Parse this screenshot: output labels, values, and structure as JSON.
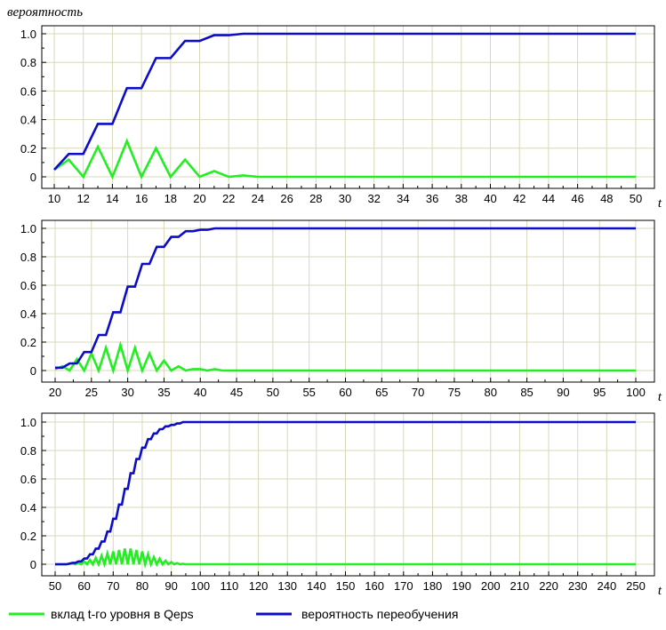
{
  "figure": {
    "ylabel": "вероятность",
    "time_label": "t"
  },
  "legend": [
    {
      "label": "вклад t-го уровня в Qeps",
      "color": "#22ee22"
    },
    {
      "label": "вероятность переобучения",
      "color": "#0d0dc8"
    }
  ],
  "colors": {
    "grid": "#d8d8b8",
    "axes": "#000000",
    "green": "#22ee22",
    "blue": "#0d0dc8"
  },
  "chart_data": [
    {
      "type": "line",
      "xlim": [
        10,
        50
      ],
      "ylim": [
        0,
        1.0
      ],
      "x_tick_step": 2,
      "y_ticks": [
        "0",
        "0.2",
        "0.4",
        "0.6",
        "0.8",
        "1.0"
      ],
      "y_values": [
        0,
        0.2,
        0.4,
        0.6,
        0.8,
        1.0
      ],
      "series": [
        {
          "name": "вклад t-го уровня в Qeps",
          "color": "#22ee22",
          "x": [
            10,
            11,
            12,
            13,
            14,
            15,
            16,
            17,
            18,
            19,
            20,
            21,
            22,
            23,
            24,
            25,
            26,
            27,
            28,
            29,
            30,
            31,
            32,
            33,
            34,
            35,
            36,
            37,
            38,
            39,
            40,
            41,
            42,
            43,
            44,
            45,
            46,
            47,
            48,
            49,
            50
          ],
          "y": [
            0.05,
            0.12,
            0,
            0.21,
            0,
            0.25,
            0,
            0.2,
            0,
            0.12,
            0,
            0.04,
            0,
            0.01,
            0,
            0,
            0,
            0,
            0,
            0,
            0,
            0,
            0,
            0,
            0,
            0,
            0,
            0,
            0,
            0,
            0,
            0,
            0,
            0,
            0,
            0,
            0,
            0,
            0,
            0,
            0
          ]
        },
        {
          "name": "вероятность переобучения",
          "color": "#0d0dc8",
          "x": [
            10,
            11,
            12,
            13,
            14,
            15,
            16,
            17,
            18,
            19,
            20,
            21,
            22,
            23,
            24,
            25,
            26,
            27,
            28,
            29,
            30,
            31,
            32,
            33,
            34,
            35,
            36,
            37,
            38,
            39,
            40,
            41,
            42,
            43,
            44,
            45,
            46,
            47,
            48,
            49,
            50
          ],
          "y": [
            0.05,
            0.16,
            0.16,
            0.37,
            0.37,
            0.62,
            0.62,
            0.83,
            0.83,
            0.95,
            0.95,
            0.99,
            0.99,
            1.0,
            1.0,
            1.0,
            1.0,
            1.0,
            1.0,
            1.0,
            1.0,
            1.0,
            1.0,
            1.0,
            1.0,
            1.0,
            1.0,
            1.0,
            1.0,
            1.0,
            1.0,
            1.0,
            1.0,
            1.0,
            1.0,
            1.0,
            1.0,
            1.0,
            1.0,
            1.0,
            1.0
          ]
        }
      ]
    },
    {
      "type": "line",
      "xlim": [
        20,
        100
      ],
      "ylim": [
        0,
        1.0
      ],
      "x_tick_step": 5,
      "y_ticks": [
        "0",
        "0.2",
        "0.4",
        "0.6",
        "0.8",
        "1.0"
      ],
      "y_values": [
        0,
        0.2,
        0.4,
        0.6,
        0.8,
        1.0
      ],
      "series": [
        {
          "name": "вклад t-го уровня в Qeps",
          "color": "#22ee22",
          "x": [
            20,
            21,
            22,
            23,
            24,
            25,
            26,
            27,
            28,
            29,
            30,
            31,
            32,
            33,
            34,
            35,
            36,
            37,
            38,
            39,
            40,
            41,
            42,
            43,
            44,
            45,
            100
          ],
          "y": [
            0.01,
            0.03,
            0,
            0.08,
            0,
            0.12,
            0,
            0.16,
            0,
            0.18,
            0,
            0.16,
            0,
            0.12,
            0,
            0.07,
            0,
            0.03,
            0,
            0.01,
            0.01,
            0,
            0.01,
            0,
            0,
            0,
            0
          ]
        },
        {
          "name": "вероятность переобучения",
          "color": "#0d0dc8",
          "x": [
            20,
            21,
            22,
            23,
            24,
            25,
            26,
            27,
            28,
            29,
            30,
            31,
            32,
            33,
            34,
            35,
            36,
            37,
            38,
            39,
            40,
            41,
            42,
            43,
            44,
            45,
            100
          ],
          "y": [
            0.02,
            0.02,
            0.05,
            0.05,
            0.13,
            0.13,
            0.25,
            0.25,
            0.41,
            0.41,
            0.59,
            0.59,
            0.75,
            0.75,
            0.87,
            0.87,
            0.94,
            0.94,
            0.98,
            0.98,
            0.99,
            0.99,
            1.0,
            1.0,
            1.0,
            1.0,
            1.0
          ]
        }
      ]
    },
    {
      "type": "line",
      "xlim": [
        50,
        250
      ],
      "ylim": [
        0,
        1.0
      ],
      "x_tick_step": 10,
      "y_ticks": [
        "0",
        "0.2",
        "0.4",
        "0.6",
        "0.8",
        "1.0"
      ],
      "y_values": [
        0,
        0.2,
        0.4,
        0.6,
        0.8,
        1.0
      ],
      "series": [
        {
          "name": "вклад t-го уровня в Qeps",
          "color": "#22ee22",
          "x": [
            50,
            54,
            56,
            57,
            58,
            59,
            60,
            61,
            62,
            63,
            64,
            65,
            66,
            67,
            68,
            69,
            70,
            71,
            72,
            73,
            74,
            75,
            76,
            77,
            78,
            79,
            80,
            81,
            82,
            83,
            84,
            85,
            86,
            87,
            88,
            89,
            90,
            91,
            92,
            93,
            94,
            95,
            96,
            250
          ],
          "y": [
            0,
            0,
            0.005,
            0,
            0.01,
            0,
            0.02,
            0,
            0.03,
            0,
            0.045,
            0,
            0.06,
            0,
            0.075,
            0,
            0.09,
            0,
            0.1,
            0,
            0.11,
            0,
            0.11,
            0,
            0.1,
            0,
            0.09,
            0,
            0.07,
            0,
            0.05,
            0,
            0.04,
            0,
            0.025,
            0,
            0.015,
            0,
            0.008,
            0,
            0.003,
            0,
            0,
            0
          ]
        },
        {
          "name": "вероятность переобучения",
          "color": "#0d0dc8",
          "x": [
            50,
            54,
            56,
            57,
            58,
            59,
            60,
            61,
            62,
            63,
            64,
            65,
            66,
            67,
            68,
            69,
            70,
            71,
            72,
            73,
            74,
            75,
            76,
            77,
            78,
            79,
            80,
            81,
            82,
            83,
            84,
            85,
            86,
            87,
            88,
            89,
            90,
            91,
            92,
            93,
            94,
            95,
            96,
            250
          ],
          "y": [
            0,
            0,
            0.01,
            0.01,
            0.02,
            0.02,
            0.04,
            0.04,
            0.07,
            0.07,
            0.11,
            0.11,
            0.16,
            0.16,
            0.23,
            0.23,
            0.32,
            0.32,
            0.42,
            0.42,
            0.53,
            0.53,
            0.64,
            0.64,
            0.74,
            0.74,
            0.82,
            0.82,
            0.88,
            0.88,
            0.92,
            0.92,
            0.95,
            0.95,
            0.97,
            0.97,
            0.98,
            0.98,
            0.99,
            0.99,
            1.0,
            1.0,
            1.0,
            1.0
          ]
        }
      ]
    }
  ]
}
